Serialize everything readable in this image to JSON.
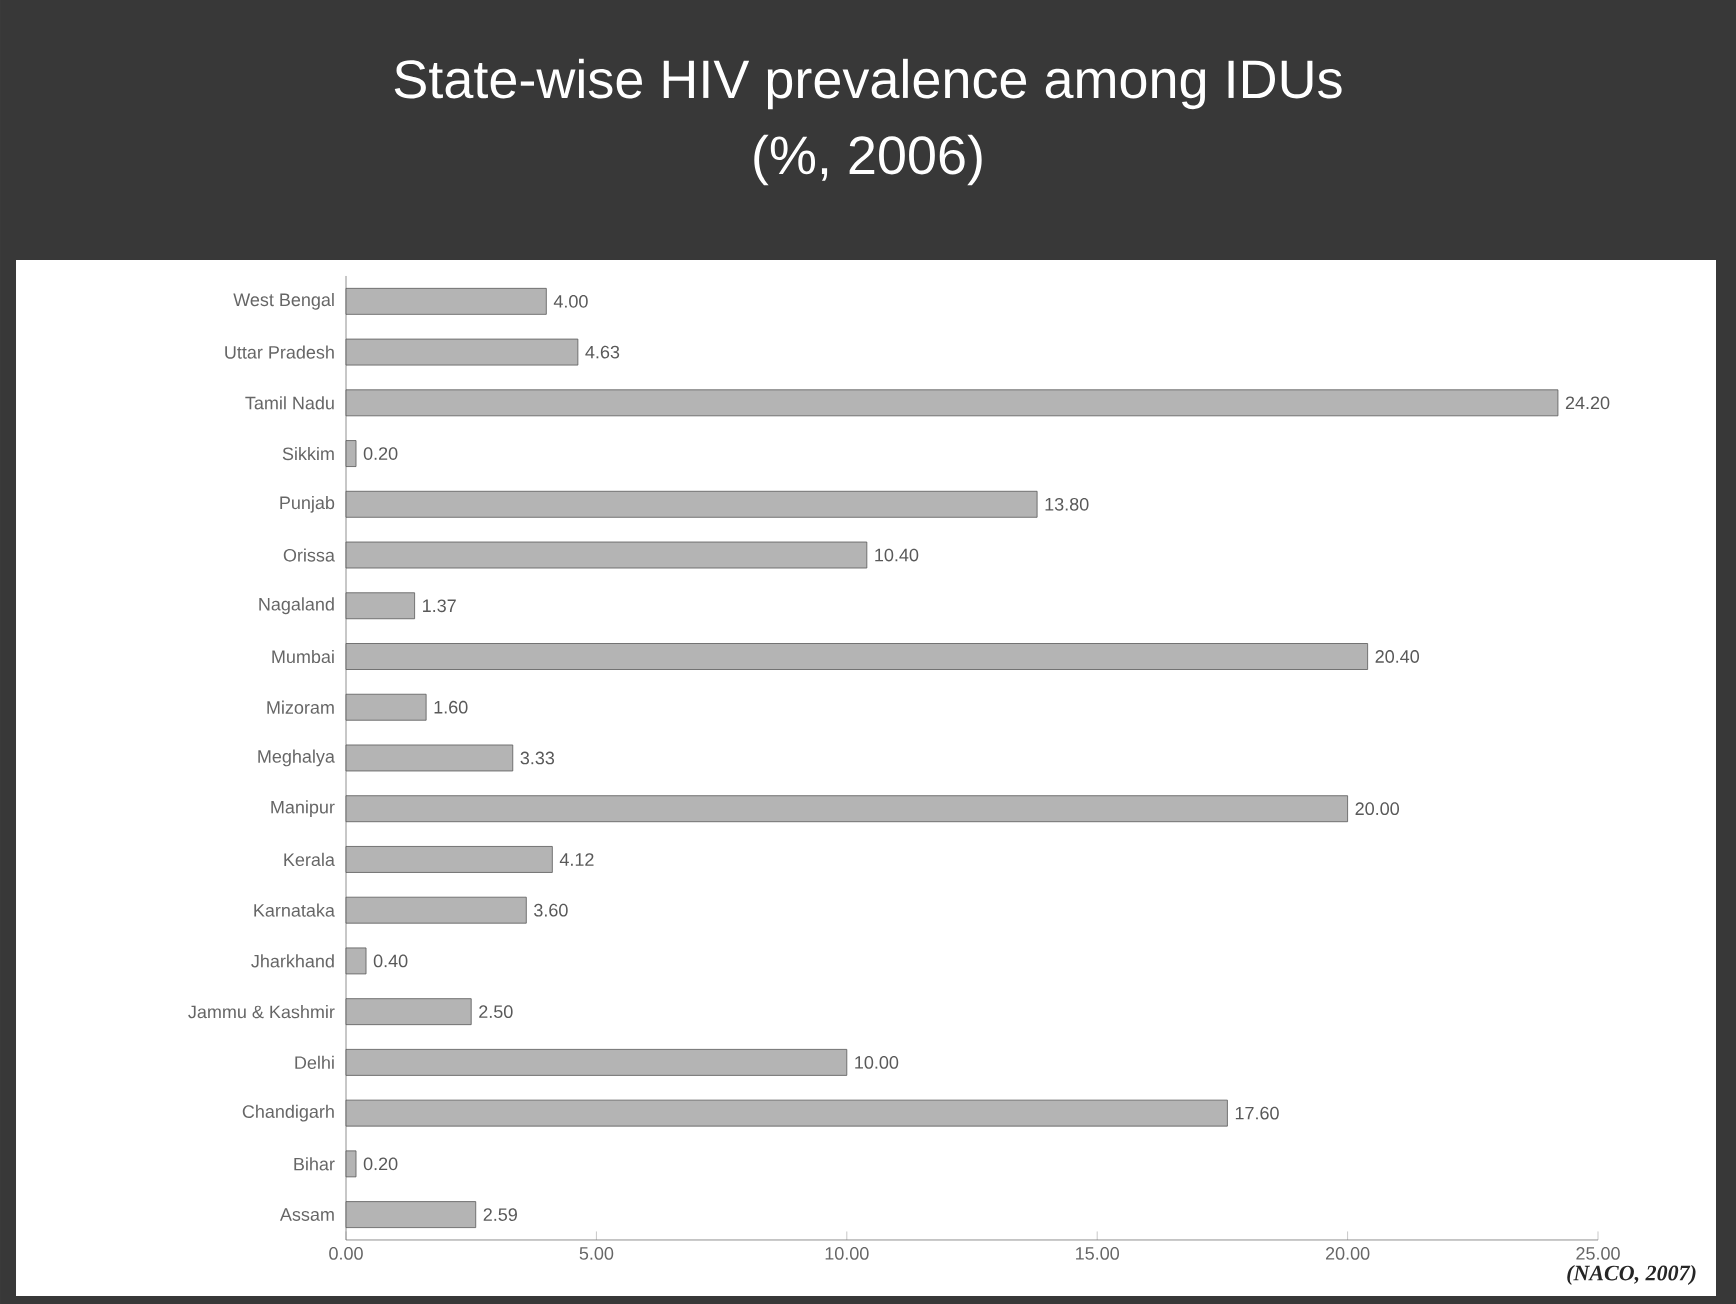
{
  "chart_data": {
    "type": "bar",
    "orientation": "horizontal",
    "title": "State-wise HIV prevalence among IDUs",
    "subtitle": "(%, 2006)",
    "categories": [
      "West Bengal",
      "Uttar Pradesh",
      "Tamil Nadu",
      "Sikkim",
      "Punjab",
      "Orissa",
      "Nagaland",
      "Mumbai",
      "Mizoram",
      "Meghalya",
      "Manipur",
      "Kerala",
      "Karnataka",
      "Jharkhand",
      "Jammu & Kashmir",
      "Delhi",
      "Chandigarh",
      "Bihar",
      "Assam"
    ],
    "values": [
      4.0,
      4.63,
      24.2,
      0.2,
      13.8,
      10.4,
      1.37,
      20.4,
      1.6,
      3.33,
      20.0,
      4.12,
      3.6,
      0.4,
      2.5,
      10.0,
      17.6,
      0.2,
      2.59
    ],
    "value_labels": [
      "4.00",
      "4.63",
      "24.20",
      "0.20",
      "13.80",
      "10.40",
      "1.37",
      "20.40",
      "1.60",
      "3.33",
      "20.00",
      "4.12",
      "3.60",
      "0.40",
      "2.50",
      "10.00",
      "17.60",
      "0.20",
      "2.59"
    ],
    "color": "#b4b4b4",
    "xlim": [
      0,
      25
    ],
    "xticks": [
      {
        "value": 0,
        "label": "0.00"
      },
      {
        "value": 5,
        "label": "5.00"
      },
      {
        "value": 10,
        "label": "10.00"
      },
      {
        "value": 15,
        "label": "15.00"
      },
      {
        "value": 20,
        "label": "20.00"
      },
      {
        "value": 25,
        "label": "25.00"
      }
    ],
    "grid": false,
    "legend": false,
    "annotations": [
      "(NACO, 2007)"
    ]
  }
}
